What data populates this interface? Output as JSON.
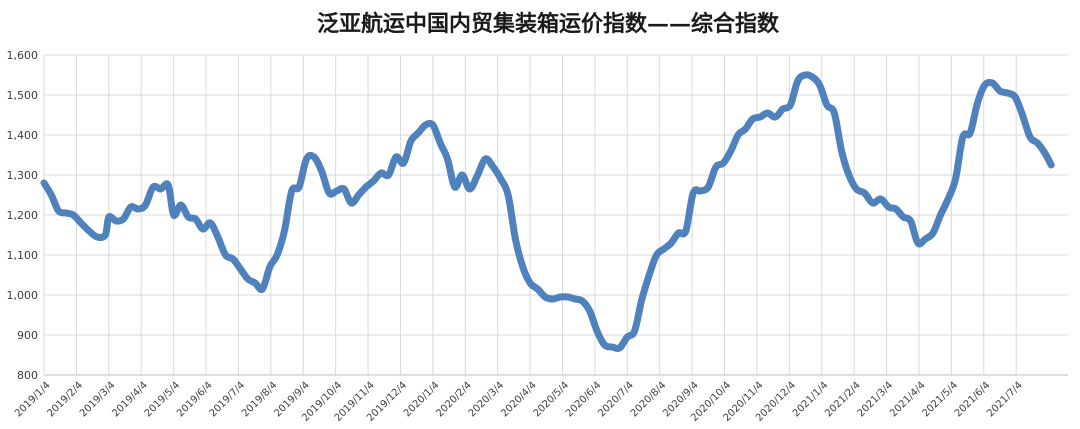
{
  "chart_data": {
    "type": "line",
    "title": "泛亚航运中国内贸集装箱运价指数——综合指数",
    "xlabel": "",
    "ylabel": "",
    "ylim": [
      800,
      1600
    ],
    "yticks": [
      "800",
      "900",
      "1,000",
      "1,100",
      "1,200",
      "1,300",
      "1,400",
      "1,500",
      "1,600"
    ],
    "ytick_values": [
      800,
      900,
      1000,
      1100,
      1200,
      1300,
      1400,
      1500,
      1600
    ],
    "x_tick_labels": [
      "2019/1/4",
      "2019/2/4",
      "2019/3/4",
      "2019/4/4",
      "2019/5/4",
      "2019/6/4",
      "2019/7/4",
      "2019/8/4",
      "2019/9/4",
      "2019/10/4",
      "2019/11/4",
      "2019/12/4",
      "2020/1/4",
      "2020/2/4",
      "2020/3/4",
      "2020/4/4",
      "2020/5/4",
      "2020/6/4",
      "2020/7/4",
      "2020/8/4",
      "2020/9/4",
      "2020/10/4",
      "2020/11/4",
      "2020/12/4",
      "2021/1/4",
      "2021/2/4",
      "2021/3/4",
      "2021/4/4",
      "2021/5/4",
      "2021/6/4",
      "2021/7/4"
    ],
    "grid": true,
    "legend": "none",
    "line_color": "#4f81bd",
    "series": [
      {
        "values": [
          [
            "2019/1/4",
            1280
          ],
          [
            "2019/1/11",
            1250
          ],
          [
            "2019/1/18",
            1210
          ],
          [
            "2019/1/25",
            1205
          ],
          [
            "2019/2/1",
            1200
          ],
          [
            "2019/2/8",
            1180
          ],
          [
            "2019/2/15",
            1160
          ],
          [
            "2019/2/22",
            1145
          ],
          [
            "2019/3/1",
            1150
          ],
          [
            "2019/3/4",
            1195
          ],
          [
            "2019/3/11",
            1185
          ],
          [
            "2019/3/18",
            1190
          ],
          [
            "2019/3/25",
            1220
          ],
          [
            "2019/4/1",
            1215
          ],
          [
            "2019/4/8",
            1225
          ],
          [
            "2019/4/15",
            1270
          ],
          [
            "2019/4/22",
            1265
          ],
          [
            "2019/4/29",
            1275
          ],
          [
            "2019/5/4",
            1200
          ],
          [
            "2019/5/11",
            1225
          ],
          [
            "2019/5/18",
            1195
          ],
          [
            "2019/5/25",
            1190
          ],
          [
            "2019/6/1",
            1165
          ],
          [
            "2019/6/8",
            1180
          ],
          [
            "2019/6/15",
            1145
          ],
          [
            "2019/6/22",
            1100
          ],
          [
            "2019/6/29",
            1090
          ],
          [
            "2019/7/6",
            1065
          ],
          [
            "2019/7/13",
            1040
          ],
          [
            "2019/7/20",
            1030
          ],
          [
            "2019/7/27",
            1015
          ],
          [
            "2019/8/3",
            1070
          ],
          [
            "2019/8/10",
            1100
          ],
          [
            "2019/8/17",
            1160
          ],
          [
            "2019/8/24",
            1260
          ],
          [
            "2019/8/31",
            1270
          ],
          [
            "2019/9/7",
            1340
          ],
          [
            "2019/9/14",
            1345
          ],
          [
            "2019/9/21",
            1310
          ],
          [
            "2019/9/28",
            1255
          ],
          [
            "2019/10/5",
            1260
          ],
          [
            "2019/10/12",
            1265
          ],
          [
            "2019/10/19",
            1230
          ],
          [
            "2019/10/26",
            1250
          ],
          [
            "2019/11/2",
            1270
          ],
          [
            "2019/11/9",
            1285
          ],
          [
            "2019/11/16",
            1305
          ],
          [
            "2019/11/23",
            1300
          ],
          [
            "2019/11/30",
            1345
          ],
          [
            "2019/12/7",
            1330
          ],
          [
            "2019/12/14",
            1385
          ],
          [
            "2019/12/21",
            1405
          ],
          [
            "2019/12/28",
            1425
          ],
          [
            "2020/1/4",
            1425
          ],
          [
            "2020/1/11",
            1380
          ],
          [
            "2020/1/18",
            1340
          ],
          [
            "2020/1/25",
            1270
          ],
          [
            "2020/2/1",
            1300
          ],
          [
            "2020/2/8",
            1265
          ],
          [
            "2020/2/15",
            1300
          ],
          [
            "2020/2/22",
            1340
          ],
          [
            "2020/2/29",
            1320
          ],
          [
            "2020/3/7",
            1290
          ],
          [
            "2020/3/14",
            1250
          ],
          [
            "2020/3/21",
            1140
          ],
          [
            "2020/3/28",
            1070
          ],
          [
            "2020/4/4",
            1030
          ],
          [
            "2020/4/11",
            1015
          ],
          [
            "2020/4/18",
            995
          ],
          [
            "2020/4/25",
            990
          ],
          [
            "2020/5/2",
            995
          ],
          [
            "2020/5/9",
            995
          ],
          [
            "2020/5/16",
            990
          ],
          [
            "2020/5/23",
            985
          ],
          [
            "2020/5/30",
            960
          ],
          [
            "2020/6/6",
            910
          ],
          [
            "2020/6/13",
            875
          ],
          [
            "2020/6/20",
            870
          ],
          [
            "2020/6/27",
            868
          ],
          [
            "2020/7/4",
            895
          ],
          [
            "2020/7/11",
            910
          ],
          [
            "2020/7/18",
            990
          ],
          [
            "2020/7/25",
            1050
          ],
          [
            "2020/8/1",
            1100
          ],
          [
            "2020/8/8",
            1115
          ],
          [
            "2020/8/15",
            1130
          ],
          [
            "2020/8/22",
            1155
          ],
          [
            "2020/8/29",
            1160
          ],
          [
            "2020/9/5",
            1255
          ],
          [
            "2020/9/12",
            1260
          ],
          [
            "2020/9/19",
            1270
          ],
          [
            "2020/9/26",
            1320
          ],
          [
            "2020/10/3",
            1330
          ],
          [
            "2020/10/10",
            1360
          ],
          [
            "2020/10/17",
            1400
          ],
          [
            "2020/10/24",
            1415
          ],
          [
            "2020/10/31",
            1440
          ],
          [
            "2020/11/7",
            1445
          ],
          [
            "2020/11/14",
            1455
          ],
          [
            "2020/11/21",
            1445
          ],
          [
            "2020/11/28",
            1465
          ],
          [
            "2020/12/5",
            1475
          ],
          [
            "2020/12/12",
            1535
          ],
          [
            "2020/12/19",
            1550
          ],
          [
            "2020/12/26",
            1545
          ],
          [
            "2021/1/2",
            1525
          ],
          [
            "2021/1/9",
            1475
          ],
          [
            "2021/1/16",
            1455
          ],
          [
            "2021/1/23",
            1360
          ],
          [
            "2021/1/30",
            1300
          ],
          [
            "2021/2/6",
            1265
          ],
          [
            "2021/2/13",
            1255
          ],
          [
            "2021/2/20",
            1230
          ],
          [
            "2021/2/27",
            1240
          ],
          [
            "2021/3/6",
            1220
          ],
          [
            "2021/3/13",
            1215
          ],
          [
            "2021/3/20",
            1195
          ],
          [
            "2021/3/27",
            1185
          ],
          [
            "2021/4/3",
            1130
          ],
          [
            "2021/4/10",
            1140
          ],
          [
            "2021/4/17",
            1155
          ],
          [
            "2021/4/24",
            1200
          ],
          [
            "2021/5/1",
            1240
          ],
          [
            "2021/5/8",
            1290
          ],
          [
            "2021/5/15",
            1395
          ],
          [
            "2021/5/22",
            1405
          ],
          [
            "2021/5/29",
            1480
          ],
          [
            "2021/6/5",
            1525
          ],
          [
            "2021/6/12",
            1530
          ],
          [
            "2021/6/19",
            1510
          ],
          [
            "2021/6/26",
            1505
          ],
          [
            "2021/7/3",
            1495
          ],
          [
            "2021/7/10",
            1450
          ],
          [
            "2021/7/17",
            1395
          ],
          [
            "2021/7/24",
            1380
          ],
          [
            "2021/7/31",
            1355
          ],
          [
            "2021/8/6",
            1325
          ]
        ]
      }
    ]
  }
}
